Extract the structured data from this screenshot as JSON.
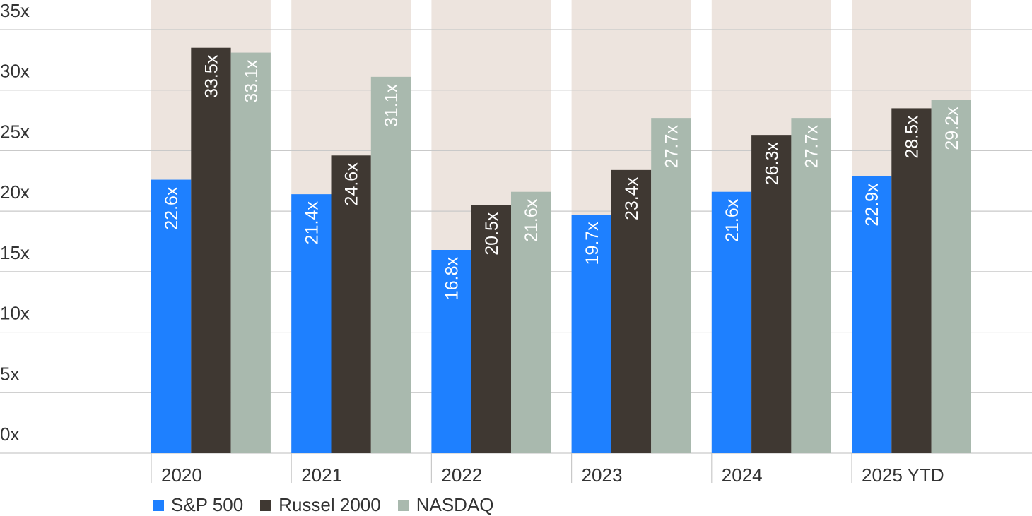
{
  "chart_data": {
    "type": "bar",
    "categories": [
      "2020",
      "2021",
      "2022",
      "2023",
      "2024",
      "2025 YTD"
    ],
    "series": [
      {
        "name": "S&P 500",
        "color": "#1e80ff",
        "label_color": "#ffffff",
        "values": [
          22.6,
          21.4,
          16.8,
          19.7,
          21.6,
          22.9
        ],
        "labels": [
          "22.6x",
          "21.4x",
          "16.8x",
          "19.7x",
          "21.6x",
          "22.9x"
        ]
      },
      {
        "name": "Russel 2000",
        "color": "#3f3832",
        "label_color": "#ffffff",
        "values": [
          33.5,
          24.6,
          20.5,
          23.4,
          26.3,
          28.5
        ],
        "labels": [
          "33.5x",
          "24.6x",
          "20.5x",
          "23.4x",
          "26.3x",
          "28.5x"
        ]
      },
      {
        "name": "NASDAQ",
        "color": "#a9b9ae",
        "label_color": "#ffffff",
        "values": [
          33.1,
          31.1,
          21.6,
          27.7,
          27.7,
          29.2
        ],
        "labels": [
          "33.1x",
          "31.1x",
          "21.6x",
          "27.7x",
          "27.7x",
          "29.2x"
        ]
      }
    ],
    "y_ticks": [
      "0x",
      "5x",
      "10x",
      "15x",
      "20x",
      "25x",
      "30x",
      "35x"
    ],
    "ylim": [
      0,
      35
    ],
    "background_band_color": "#ede4de",
    "gridline_color": "#c9c9c9",
    "grid": true,
    "legend": "bottom-left"
  }
}
